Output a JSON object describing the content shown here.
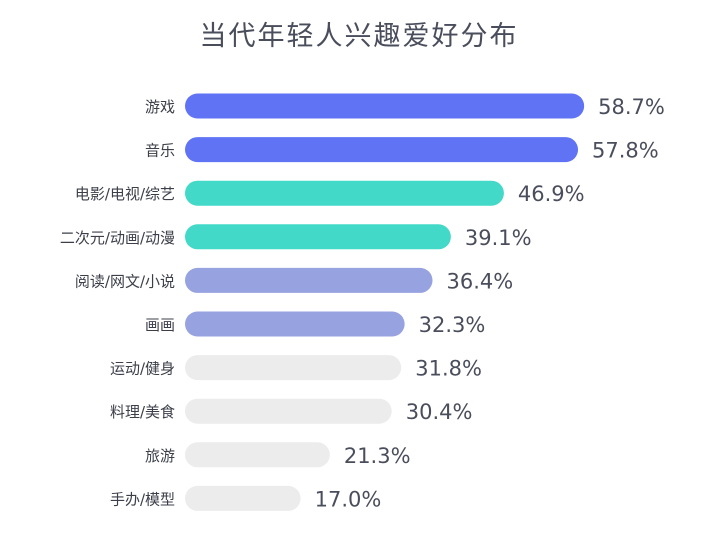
{
  "chart_data": {
    "type": "bar",
    "orientation": "horizontal",
    "title": "当代年轻人兴趣爱好分布",
    "categories": [
      "游戏",
      "音乐",
      "电影/电视/综艺",
      "二次元/动画/动漫",
      "阅读/网文/小说",
      "画画",
      "运动/健身",
      "料理/美食",
      "旅游",
      "手办/模型"
    ],
    "values": [
      58.7,
      57.8,
      46.9,
      39.1,
      36.4,
      32.3,
      31.8,
      30.4,
      21.3,
      17.0
    ],
    "value_labels": [
      "58.7%",
      "57.8%",
      "46.9%",
      "39.1%",
      "36.4%",
      "32.3%",
      "31.8%",
      "30.4%",
      "21.3%",
      "17.0%"
    ],
    "unit": "%",
    "xlim": [
      0,
      60
    ],
    "grid": false,
    "legend": "none",
    "bar_colors": [
      "#5f73f4",
      "#5f73f4",
      "#42d9c8",
      "#42d9c8",
      "#97a2e0",
      "#97a2e0",
      "#ececec",
      "#ececec",
      "#ececec",
      "#ececec"
    ],
    "text_color": "#4a4d5c"
  }
}
